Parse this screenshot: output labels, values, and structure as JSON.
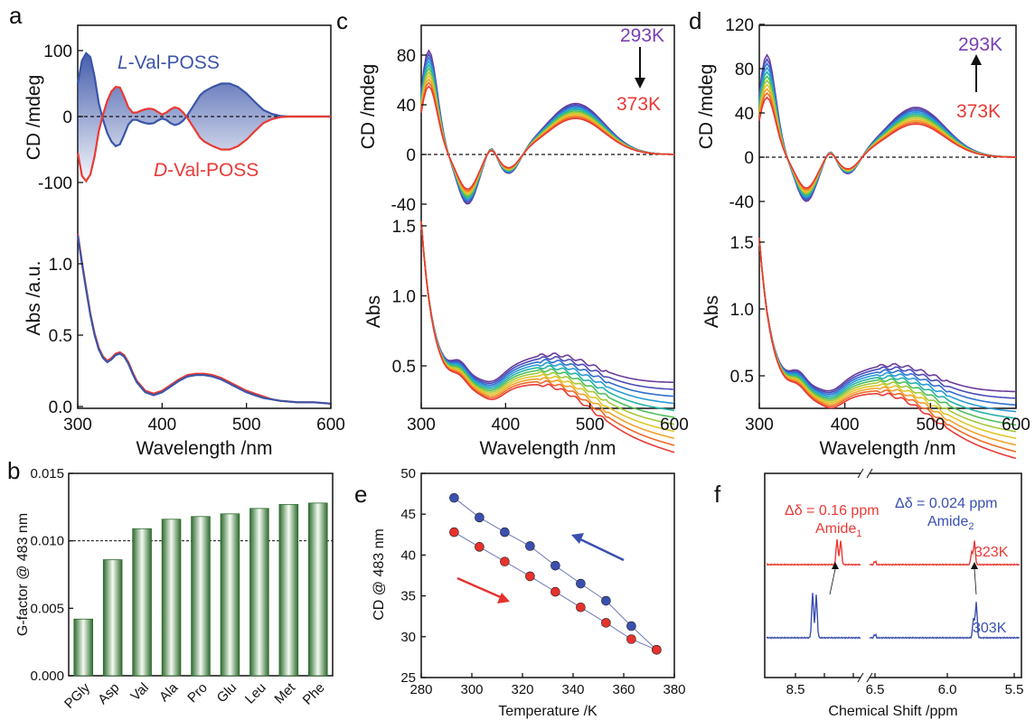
{
  "panels": {
    "a": "a",
    "b": "b",
    "c": "c",
    "d": "d",
    "e": "e",
    "f": "f"
  },
  "colors": {
    "blue": "#3b55a8",
    "red": "#e83a35",
    "bar": "#3a7a3a",
    "eblue": "#3a4fb0",
    "ered": "#e8312c"
  },
  "chart_data": [
    {
      "id": "a-top",
      "type": "line",
      "xlabel": "",
      "ylabel": "CD /mdeg",
      "xlim": [
        300,
        600
      ],
      "ylim": [
        -130,
        150
      ],
      "yticks": [
        "100",
        "0",
        "-100"
      ],
      "series": [
        {
          "name": "L-Val-POSS",
          "x": [
            300,
            305,
            310,
            315,
            320,
            325,
            330,
            335,
            340,
            345,
            350,
            355,
            360,
            365,
            370,
            375,
            380,
            385,
            390,
            395,
            400,
            405,
            410,
            415,
            420,
            425,
            430,
            435,
            440,
            445,
            450,
            460,
            470,
            480,
            490,
            500,
            510,
            520,
            530,
            540,
            550,
            560,
            570,
            580,
            600
          ],
          "y": [
            50,
            85,
            96,
            90,
            60,
            20,
            -5,
            -25,
            -38,
            -45,
            -42,
            -28,
            -12,
            -5,
            -5,
            -8,
            -10,
            -11,
            -10,
            -6,
            -3,
            -5,
            -10,
            -13,
            -11,
            -6,
            2,
            12,
            22,
            32,
            38,
            45,
            50,
            50,
            45,
            35,
            22,
            10,
            4,
            1,
            0,
            0,
            0,
            0,
            0
          ]
        },
        {
          "name": "D-Val-POSS",
          "x": [
            300,
            305,
            310,
            315,
            320,
            325,
            330,
            335,
            340,
            345,
            350,
            355,
            360,
            365,
            370,
            375,
            380,
            385,
            390,
            395,
            400,
            405,
            410,
            415,
            420,
            425,
            430,
            435,
            440,
            445,
            450,
            460,
            470,
            480,
            490,
            500,
            510,
            520,
            530,
            540,
            550,
            560,
            570,
            580,
            600
          ],
          "y": [
            -55,
            -90,
            -98,
            -88,
            -60,
            -22,
            3,
            24,
            38,
            45,
            44,
            30,
            14,
            6,
            6,
            9,
            11,
            12,
            11,
            7,
            3,
            6,
            11,
            14,
            12,
            6,
            -2,
            -12,
            -22,
            -32,
            -38,
            -45,
            -50,
            -50,
            -45,
            -35,
            -22,
            -10,
            -4,
            -1,
            0,
            0,
            0,
            0,
            0
          ]
        }
      ],
      "labels": {
        "l_italic": "L",
        "l_rest": "-Val-POSS",
        "d_italic": "D",
        "d_rest": "-Val-POSS"
      }
    },
    {
      "id": "a-bottom",
      "type": "line",
      "xlabel": "Wavelength /nm",
      "ylabel": "Abs /a.u.",
      "xlim": [
        300,
        600
      ],
      "ylim": [
        0,
        1.3
      ],
      "xticks": [
        "300",
        "400",
        "500",
        "600"
      ],
      "yticks": [
        "0.0",
        "0.5",
        "1.0"
      ],
      "series": [
        {
          "name": "L",
          "x": [
            300,
            305,
            310,
            315,
            320,
            325,
            330,
            335,
            340,
            345,
            350,
            355,
            360,
            365,
            370,
            380,
            390,
            400,
            410,
            420,
            430,
            440,
            450,
            460,
            470,
            480,
            490,
            500,
            510,
            520,
            530,
            540,
            560,
            580,
            600
          ],
          "y": [
            1.2,
            1.0,
            0.82,
            0.64,
            0.5,
            0.4,
            0.34,
            0.31,
            0.33,
            0.36,
            0.37,
            0.35,
            0.3,
            0.23,
            0.17,
            0.1,
            0.08,
            0.1,
            0.14,
            0.18,
            0.21,
            0.22,
            0.22,
            0.21,
            0.19,
            0.16,
            0.13,
            0.1,
            0.08,
            0.06,
            0.05,
            0.04,
            0.03,
            0.03,
            0.02
          ]
        },
        {
          "name": "D",
          "x": [
            300,
            305,
            310,
            315,
            320,
            325,
            330,
            335,
            340,
            345,
            350,
            355,
            360,
            365,
            370,
            380,
            390,
            400,
            410,
            420,
            430,
            440,
            450,
            460,
            470,
            480,
            490,
            500,
            510,
            520,
            530,
            540,
            560,
            580,
            600
          ],
          "y": [
            1.21,
            1.01,
            0.83,
            0.65,
            0.51,
            0.41,
            0.35,
            0.32,
            0.34,
            0.37,
            0.38,
            0.36,
            0.31,
            0.24,
            0.18,
            0.11,
            0.09,
            0.11,
            0.15,
            0.19,
            0.22,
            0.23,
            0.23,
            0.22,
            0.2,
            0.17,
            0.14,
            0.11,
            0.09,
            0.07,
            0.05,
            0.04,
            0.03,
            0.03,
            0.02
          ]
        }
      ]
    },
    {
      "id": "b",
      "type": "bar",
      "ylabel": "G-factor @ 483 nm",
      "ylim": [
        0,
        0.015
      ],
      "yticks": [
        "0.000",
        "0.005",
        "0.010",
        "0.015"
      ],
      "categories": [
        "PGly",
        "Asp",
        "Val",
        "Ala",
        "Pro",
        "Glu",
        "Leu",
        "Met",
        "Phe"
      ],
      "values": [
        0.0042,
        0.0086,
        0.0109,
        0.0116,
        0.0118,
        0.012,
        0.0124,
        0.0127,
        0.0128
      ],
      "reference_line": 0.01
    },
    {
      "id": "c",
      "type": "line",
      "ylabel_top": "CD /mdeg",
      "ylabel_bottom": "Abs",
      "xlabel": "Wavelength /nm",
      "xticks": [
        "300",
        "400",
        "500",
        "600"
      ],
      "yticks_top": [
        "80",
        "40",
        "0",
        "-40"
      ],
      "yticks_bottom": [
        "0.5",
        "1.0",
        "1.5"
      ],
      "temperatures": [
        "293K",
        "373K"
      ],
      "cd_peak_293": 96,
      "cd_peak_373": 63,
      "cd_second_293": 41,
      "cd_second_373": 29
    },
    {
      "id": "d",
      "type": "line",
      "ylabel_top": "CD /mdeg",
      "ylabel_bottom": "Abs",
      "xlabel": "Wavelength /nm",
      "xticks": [
        "300",
        "400",
        "500",
        "600"
      ],
      "yticks_top": [
        "120",
        "80",
        "40",
        "0",
        "-40"
      ],
      "yticks_bottom": [
        "0.5",
        "1.0",
        "1.5"
      ],
      "temperatures": [
        "293K",
        "373K"
      ],
      "cd_peak_293": 106,
      "cd_peak_373": 62,
      "cd_second_293": 45,
      "cd_second_373": 30
    },
    {
      "id": "e",
      "type": "scatter",
      "xlabel": "Temperature /K",
      "ylabel": "CD @ 483 nm",
      "xlim": [
        280,
        380
      ],
      "ylim": [
        25,
        50
      ],
      "xticks": [
        "280",
        "300",
        "320",
        "340",
        "360",
        "380"
      ],
      "yticks": [
        "25",
        "30",
        "35",
        "40",
        "45",
        "50"
      ],
      "series": [
        {
          "name": "heating",
          "x": [
            293,
            303,
            313,
            323,
            333,
            343,
            353,
            363,
            373
          ],
          "y": [
            47,
            44.6,
            42.8,
            41.1,
            38.7,
            36.5,
            34.4,
            31.3,
            28.4
          ]
        },
        {
          "name": "cooling",
          "x": [
            293,
            303,
            313,
            323,
            333,
            343,
            353,
            363,
            373
          ],
          "y": [
            42.8,
            41,
            39.2,
            37.4,
            35.5,
            33.6,
            31.7,
            29.7,
            28.4
          ]
        }
      ]
    },
    {
      "id": "f",
      "type": "line",
      "xlabel": "Chemical Shift /ppm",
      "xticks": [
        "8.5",
        "8.0",
        "7.5",
        "6.5",
        "6.0",
        "5.5"
      ],
      "annotations": {
        "amide1_delta": "Δδ = 0.16 ppm",
        "amide1": "Amide",
        "amide1_sub": "1",
        "amide2_delta": "Δδ = 0.024 ppm",
        "amide2": "Amide",
        "amide2_sub": "2",
        "t_high": "323K",
        "t_low": "303K"
      }
    }
  ]
}
